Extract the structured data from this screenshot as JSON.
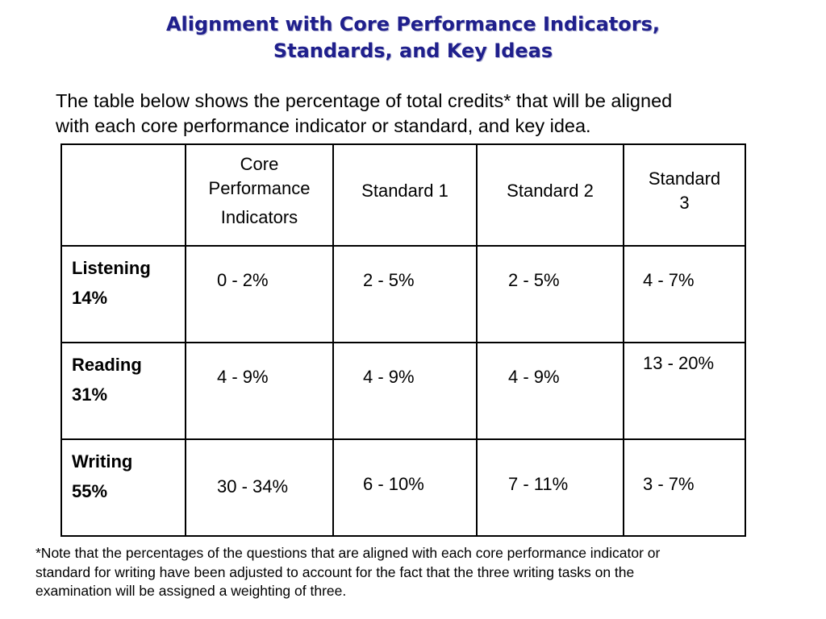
{
  "title": {
    "line1": "Alignment with Core Performance Indicators,",
    "line2": "Standards, and Key Ideas"
  },
  "intro": {
    "line1": "The table below shows the percentage of total credits* that will be aligned",
    "line2": "with each core performance indicator or standard, and key idea."
  },
  "table": {
    "headers": {
      "core_line1": "Core",
      "core_line2": "Performance",
      "core_line3": "Indicators",
      "standard1": "Standard 1",
      "standard2": "Standard 2",
      "standard3_line1": "Standard",
      "standard3_line2": "3"
    },
    "rows": [
      {
        "label": "Listening",
        "total": "14%",
        "core": "0 - 2%",
        "standard1": "2 - 5%",
        "standard2": "2 - 5%",
        "standard3": "4 - 7%"
      },
      {
        "label": "Reading",
        "total": "31%",
        "core": "4 - 9%",
        "standard1": "4 - 9%",
        "standard2": "4 - 9%",
        "standard3": "13 - 20%"
      },
      {
        "label": "Writing",
        "total": "55%",
        "core": "30 - 34%",
        "standard1": "6 - 10%",
        "standard2": "7 - 11%",
        "standard3": "3 - 7%"
      }
    ]
  },
  "footnote": {
    "line1": "*Note that the percentages of the questions that are aligned with each core performance indicator or",
    "line2": "standard for writing have been adjusted to account for the fact that the three writing tasks on the",
    "line3": "examination will be assigned a weighting of three."
  },
  "colors": {
    "title": "#1f1f8c",
    "text": "#000000",
    "border": "#000000",
    "background": "#ffffff"
  }
}
